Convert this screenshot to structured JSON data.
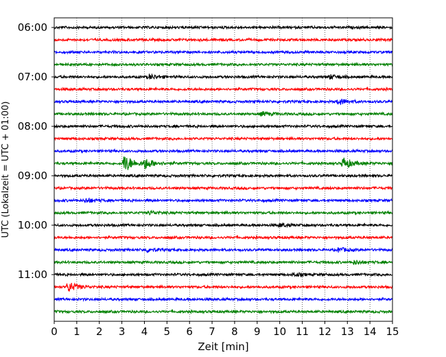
{
  "chart_data": {
    "type": "line",
    "title": "",
    "xlabel": "Zeit  [min]",
    "ylabel": "UTC (Lokalzeit = UTC + 01:00)",
    "xlim": [
      0,
      15
    ],
    "x_ticks": [
      0,
      1,
      2,
      3,
      4,
      5,
      6,
      7,
      8,
      9,
      10,
      11,
      12,
      13,
      14,
      15
    ],
    "grid": "vertical dotted",
    "legend": "none",
    "line_minutes": 15,
    "trace_colors": [
      "#000000",
      "#ff0000",
      "#0000ff",
      "#008000"
    ],
    "y_tick_labels": [
      "06:00",
      "07:00",
      "08:00",
      "09:00",
      "10:00",
      "11:00"
    ],
    "traces": [
      {
        "start": "06:00",
        "color": "#000000",
        "events": []
      },
      {
        "start": "06:15",
        "color": "#ff0000",
        "events": []
      },
      {
        "start": "06:30",
        "color": "#0000ff",
        "events": []
      },
      {
        "start": "06:45",
        "color": "#008000",
        "events": []
      },
      {
        "start": "07:00",
        "color": "#000000",
        "events": [
          {
            "minute": 4.2,
            "amplitude": 0.4
          },
          {
            "minute": 12.2,
            "amplitude": 0.35
          }
        ]
      },
      {
        "start": "07:15",
        "color": "#ff0000",
        "events": []
      },
      {
        "start": "07:30",
        "color": "#0000ff",
        "events": [
          {
            "minute": 12.6,
            "amplitude": 0.55
          }
        ]
      },
      {
        "start": "07:45",
        "color": "#008000",
        "events": [
          {
            "minute": 9.2,
            "amplitude": 0.35
          }
        ]
      },
      {
        "start": "08:00",
        "color": "#000000",
        "events": []
      },
      {
        "start": "08:15",
        "color": "#ff0000",
        "events": []
      },
      {
        "start": "08:30",
        "color": "#0000ff",
        "events": []
      },
      {
        "start": "08:45",
        "color": "#008000",
        "events": [
          {
            "minute": 3.1,
            "amplitude": 1.6
          },
          {
            "minute": 4.0,
            "amplitude": 0.9
          },
          {
            "minute": 12.8,
            "amplitude": 1.0
          }
        ]
      },
      {
        "start": "09:00",
        "color": "#000000",
        "events": []
      },
      {
        "start": "09:15",
        "color": "#ff0000",
        "events": []
      },
      {
        "start": "09:30",
        "color": "#0000ff",
        "events": [
          {
            "minute": 1.4,
            "amplitude": 0.4
          }
        ]
      },
      {
        "start": "09:45",
        "color": "#008000",
        "events": [
          {
            "minute": 4.2,
            "amplitude": 0.3
          }
        ]
      },
      {
        "start": "10:00",
        "color": "#000000",
        "events": [
          {
            "minute": 10.0,
            "amplitude": 0.3
          }
        ]
      },
      {
        "start": "10:15",
        "color": "#ff0000",
        "events": []
      },
      {
        "start": "10:30",
        "color": "#0000ff",
        "events": [
          {
            "minute": 4.1,
            "amplitude": 0.35
          },
          {
            "minute": 12.6,
            "amplitude": 0.35
          }
        ]
      },
      {
        "start": "10:45",
        "color": "#008000",
        "events": [
          {
            "minute": 13.3,
            "amplitude": 0.3
          }
        ]
      },
      {
        "start": "11:00",
        "color": "#000000",
        "events": [
          {
            "minute": 10.6,
            "amplitude": 0.3
          }
        ]
      },
      {
        "start": "11:15",
        "color": "#ff0000",
        "events": [
          {
            "minute": 0.6,
            "amplitude": 0.9
          }
        ]
      },
      {
        "start": "11:30",
        "color": "#0000ff",
        "events": []
      },
      {
        "start": "11:45",
        "color": "#008000",
        "events": []
      }
    ]
  }
}
